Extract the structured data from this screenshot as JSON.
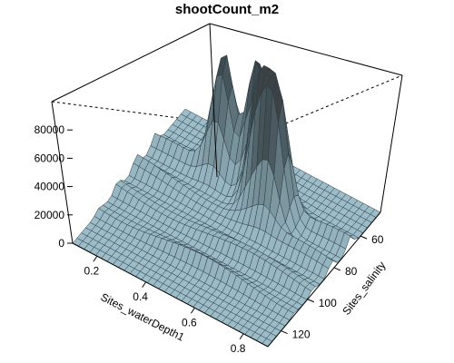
{
  "chart_data": {
    "type": "surface3d",
    "title": "shootCount_m2",
    "xlabel": "Sites_waterDepth1",
    "ylabel": "Sites_salinity",
    "zlabel": "",
    "x_ticks": [
      "0.2",
      "0.4",
      "0.6",
      "0.8"
    ],
    "y_ticks": [
      "60",
      "80",
      "100",
      "120"
    ],
    "z_ticks": [
      "0",
      "20000",
      "40000",
      "60000",
      "80000"
    ],
    "xlim": [
      0.1,
      0.9
    ],
    "ylim": [
      45,
      130
    ],
    "zlim": [
      0,
      100000
    ],
    "surface_color": "#9bbcc8",
    "box": true,
    "peaks": [
      {
        "waterDepth": 0.48,
        "salinity": 60,
        "shootCount_m2": 88000
      },
      {
        "waterDepth": 0.35,
        "salinity": 62,
        "shootCount_m2": 82000
      },
      {
        "waterDepth": 0.55,
        "salinity": 70,
        "shootCount_m2": 95000
      },
      {
        "waterDepth": 0.62,
        "salinity": 72,
        "shootCount_m2": 92000
      }
    ]
  }
}
